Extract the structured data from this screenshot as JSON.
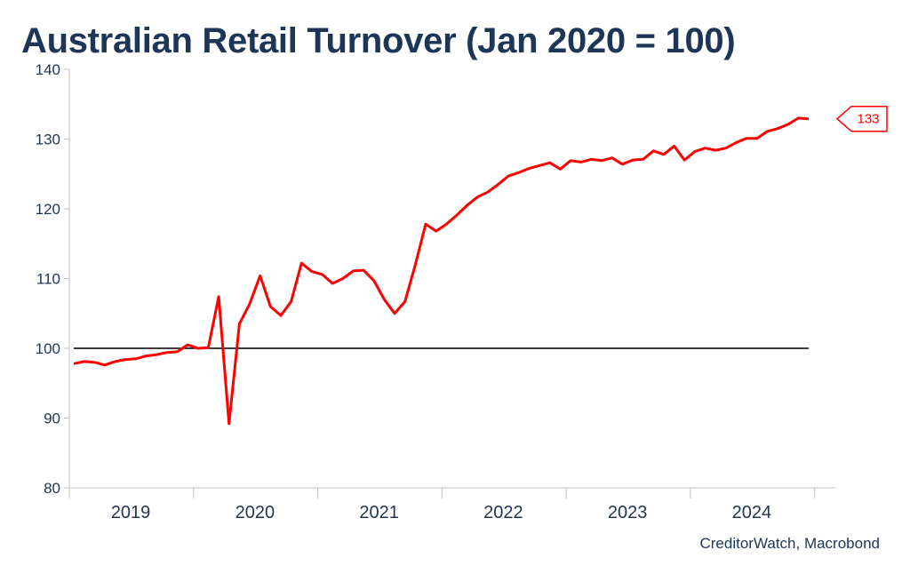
{
  "title": "Australian Retail Turnover (Jan 2020 = 100)",
  "source": "CreditorWatch, Macrobond",
  "colors": {
    "series": "#ff0000",
    "reference_line": "#000000",
    "text": "#1d3557",
    "axis": "#c0c0c0"
  },
  "chart_data": {
    "type": "line",
    "title": "Australian Retail Turnover (Jan 2020 = 100)",
    "xlabel": "",
    "ylabel": "",
    "ylim": [
      80,
      140
    ],
    "yticks": [
      80,
      90,
      100,
      110,
      120,
      130,
      140
    ],
    "xlim": [
      "2019-01",
      "2024-12"
    ],
    "year_labels": [
      "2019",
      "2020",
      "2021",
      "2022",
      "2023",
      "2024"
    ],
    "reference_line": 100,
    "grid": false,
    "legend": "none",
    "end_label": "133",
    "series": [
      {
        "x": [
          "2019-01",
          "2019-02",
          "2019-03",
          "2019-04",
          "2019-05",
          "2019-06",
          "2019-07",
          "2019-08",
          "2019-09",
          "2019-10",
          "2019-11",
          "2019-12",
          "2020-01",
          "2020-02",
          "2020-03",
          "2020-04",
          "2020-05",
          "2020-06",
          "2020-07",
          "2020-08",
          "2020-09",
          "2020-10",
          "2020-11",
          "2020-12",
          "2021-01",
          "2021-02",
          "2021-03",
          "2021-04",
          "2021-05",
          "2021-06",
          "2021-07",
          "2021-08",
          "2021-09",
          "2021-10",
          "2021-11",
          "2021-12",
          "2022-01",
          "2022-02",
          "2022-03",
          "2022-04",
          "2022-05",
          "2022-06",
          "2022-07",
          "2022-08",
          "2022-09",
          "2022-10",
          "2022-11",
          "2022-12",
          "2023-01",
          "2023-02",
          "2023-03",
          "2023-04",
          "2023-05",
          "2023-06",
          "2023-07",
          "2023-08",
          "2023-09",
          "2023-10",
          "2023-11",
          "2023-12",
          "2024-01",
          "2024-02",
          "2024-03",
          "2024-04",
          "2024-05",
          "2024-06",
          "2024-07",
          "2024-08",
          "2024-09",
          "2024-10",
          "2024-11",
          "2024-12"
        ],
        "values": [
          97.8,
          98.1,
          98.0,
          97.6,
          98.1,
          98.4,
          98.5,
          98.9,
          99.1,
          99.4,
          99.5,
          100.5,
          100.0,
          100.1,
          107.4,
          89.2,
          103.5,
          106.4,
          110.4,
          106.0,
          104.7,
          106.7,
          112.2,
          111.0,
          110.6,
          109.3,
          110.0,
          111.1,
          111.2,
          109.7,
          107.0,
          105.0,
          106.7,
          112.0,
          117.8,
          116.8,
          117.8,
          119.1,
          120.5,
          121.7,
          122.4,
          123.5,
          124.7,
          125.2,
          125.8,
          126.2,
          126.6,
          125.7,
          126.9,
          126.7,
          127.1,
          126.9,
          127.3,
          126.4,
          127.0,
          127.1,
          128.3,
          127.8,
          129.0,
          127.0,
          128.2,
          128.7,
          128.4,
          128.7,
          129.5,
          130.1,
          130.1,
          131.1,
          131.5,
          132.1,
          133.0,
          132.9
        ]
      }
    ]
  }
}
